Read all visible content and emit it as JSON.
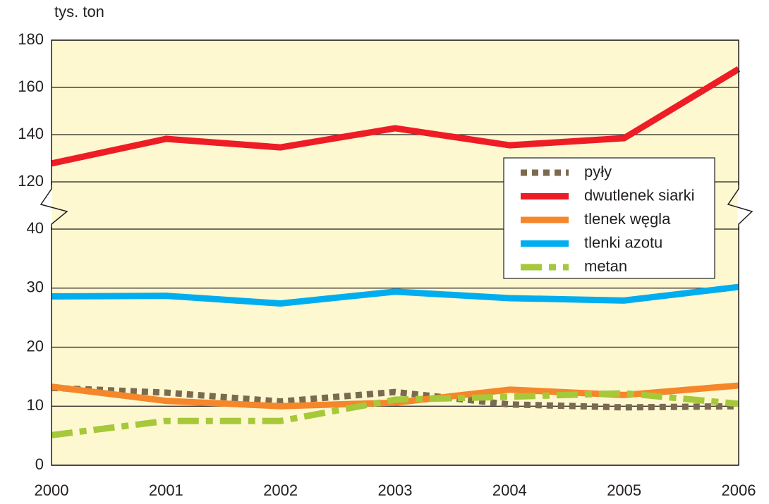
{
  "chart_data": {
    "type": "line",
    "y_label": "tys. ton",
    "categories": [
      "2000",
      "2001",
      "2002",
      "2003",
      "2004",
      "2005",
      "2006"
    ],
    "ylim": [
      0,
      180
    ],
    "axis_break": [
      40,
      120
    ],
    "yticks": [
      0,
      10,
      20,
      30,
      40,
      120,
      140,
      160,
      180
    ],
    "grid": true,
    "legend": "upper right",
    "series": [
      {
        "name": "pyły",
        "color": "#7a6a50",
        "style": "dotted",
        "values": [
          13.1,
          12.3,
          10.8,
          12.4,
          10.3,
          9.8,
          10.0
        ]
      },
      {
        "name": "dwutlenek siarki",
        "color": "#ee1c25",
        "style": "solid",
        "values": [
          127.8,
          138.2,
          134.6,
          142.7,
          135.5,
          138.5,
          167.8
        ]
      },
      {
        "name": "tlenek węgla",
        "color": "#f5862a",
        "style": "solid",
        "values": [
          13.3,
          10.9,
          10.0,
          10.6,
          12.8,
          11.9,
          13.5
        ]
      },
      {
        "name": "tlenki azotu",
        "color": "#00aeef",
        "style": "solid",
        "values": [
          28.6,
          28.7,
          27.4,
          29.4,
          28.3,
          27.9,
          30.2
        ]
      },
      {
        "name": "metan",
        "color": "#a6c83a",
        "style": "dashdot",
        "values": [
          5.1,
          7.5,
          7.5,
          11.1,
          11.6,
          12.2,
          10.4
        ]
      }
    ]
  }
}
